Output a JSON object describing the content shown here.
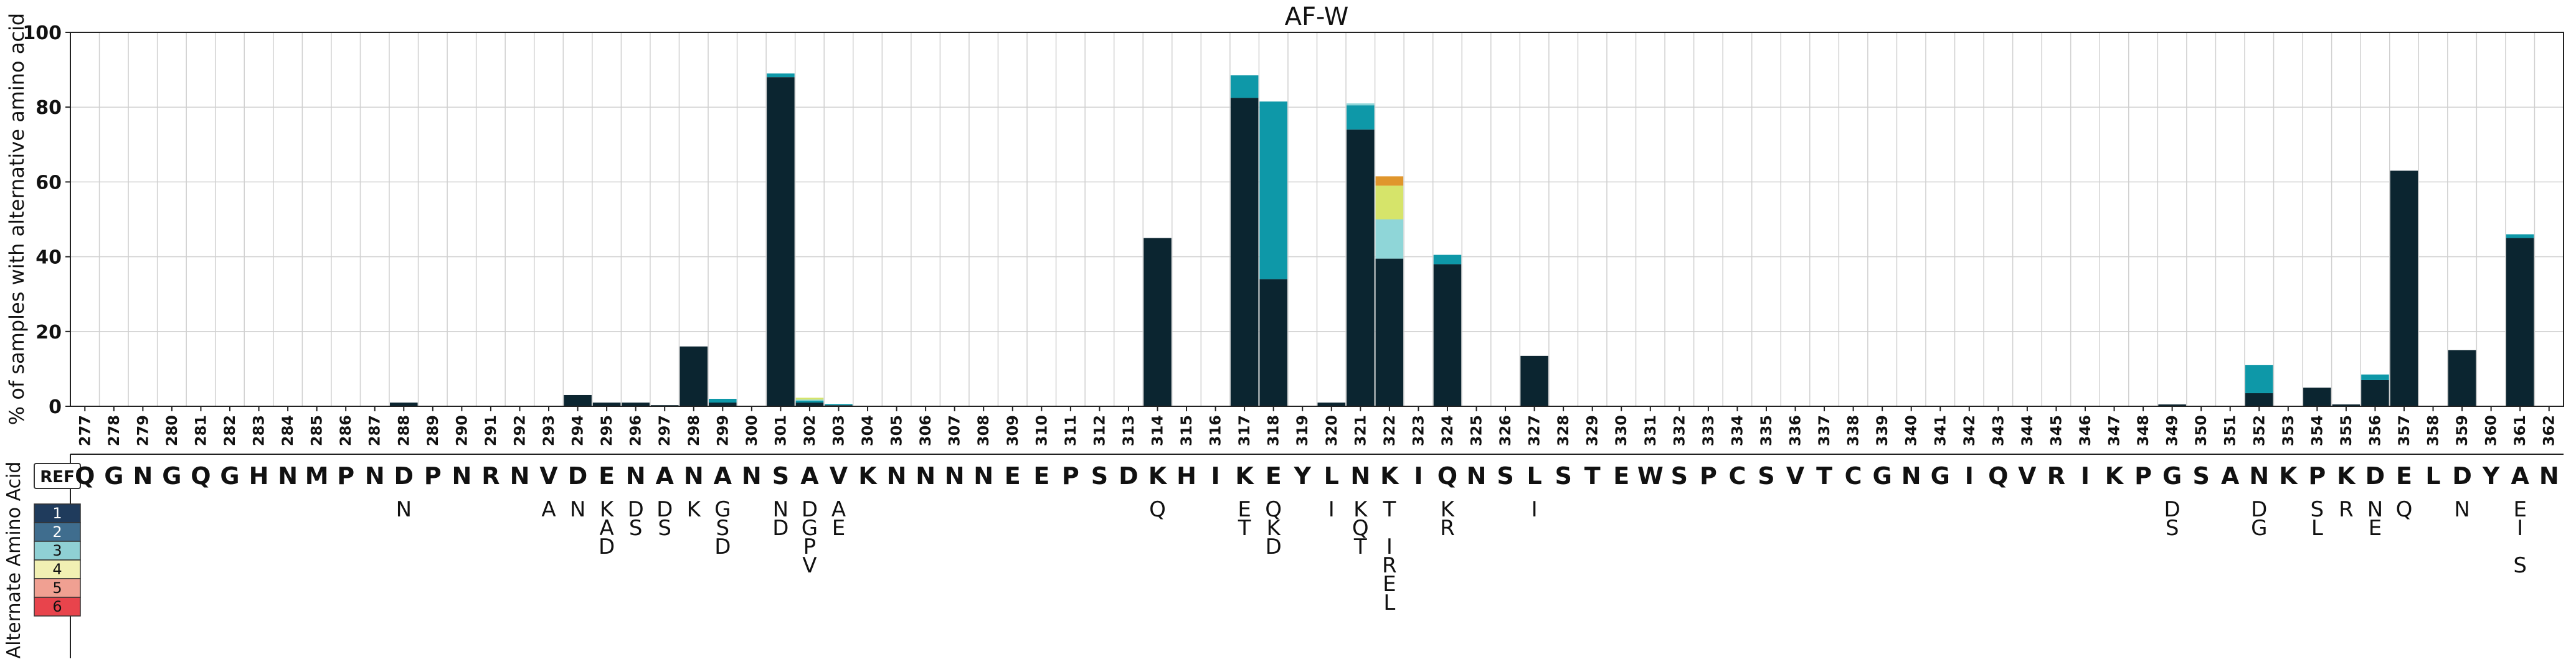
{
  "chart_data": {
    "type": "bar",
    "title": "AF-W",
    "ylabel": "% of samples with alternative amino acid",
    "ylim": [
      0,
      100
    ],
    "yticks": [
      0,
      20,
      40,
      60,
      80,
      100
    ],
    "grid": true,
    "stacked": true,
    "positions": [
      "277",
      "278",
      "279",
      "280",
      "281",
      "282",
      "283",
      "284",
      "285",
      "286",
      "287",
      "288",
      "289",
      "290",
      "291",
      "292",
      "293",
      "294",
      "295",
      "296",
      "297",
      "298",
      "299",
      "300",
      "301",
      "302",
      "303",
      "304",
      "305",
      "306",
      "307",
      "308",
      "309",
      "310",
      "311",
      "312",
      "313",
      "314",
      "315",
      "316",
      "317",
      "318",
      "319",
      "320",
      "321",
      "322",
      "323",
      "324",
      "325",
      "326",
      "327",
      "328",
      "329",
      "330",
      "331",
      "332",
      "333",
      "334",
      "335",
      "336",
      "337",
      "338",
      "339",
      "340",
      "341",
      "342",
      "343",
      "344",
      "345",
      "346",
      "347",
      "348",
      "349",
      "350",
      "351",
      "352",
      "353",
      "354",
      "355",
      "356",
      "357",
      "358",
      "359",
      "360",
      "361",
      "362"
    ],
    "ref_label": "REF",
    "reference": [
      "Q",
      "G",
      "N",
      "G",
      "Q",
      "G",
      "H",
      "N",
      "M",
      "P",
      "N",
      "D",
      "P",
      "N",
      "R",
      "N",
      "V",
      "D",
      "E",
      "N",
      "A",
      "N",
      "A",
      "N",
      "S",
      "A",
      "V",
      "K",
      "N",
      "N",
      "N",
      "N",
      "E",
      "E",
      "P",
      "S",
      "D",
      "K",
      "H",
      "I",
      "K",
      "E",
      "Y",
      "L",
      "N",
      "K",
      "I",
      "Q",
      "N",
      "S",
      "L",
      "S",
      "T",
      "E",
      "W",
      "S",
      "P",
      "C",
      "S",
      "V",
      "T",
      "C",
      "G",
      "N",
      "G",
      "I",
      "Q",
      "V",
      "R",
      "I",
      "K",
      "P",
      "G",
      "S",
      "A",
      "N",
      "K",
      "P",
      "K",
      "D",
      "E",
      "L",
      "D",
      "Y",
      "A",
      "N"
    ],
    "legend_title": "Alternate Amino Acid",
    "legend_labels": [
      "1",
      "2",
      "3",
      "4",
      "5",
      "6"
    ],
    "colors": [
      "#0b2530",
      "#0e98a8",
      "#8fd6d8",
      "#d6e46a",
      "#e0962c",
      "#a83d33"
    ],
    "legend_colors": [
      "#1f3b5c",
      "#3f6d8e",
      "#8fd0d4",
      "#f1f0b3",
      "#f0a092",
      "#e8444c"
    ],
    "alternates": [
      {
        "pos": "288",
        "aa": [
          "N"
        ]
      },
      {
        "pos": "293",
        "aa": [
          "A"
        ]
      },
      {
        "pos": "294",
        "aa": [
          "N"
        ]
      },
      {
        "pos": "295",
        "aa": [
          "K",
          "A",
          "D"
        ]
      },
      {
        "pos": "296",
        "aa": [
          "D",
          "S"
        ]
      },
      {
        "pos": "297",
        "aa": [
          "D",
          "S"
        ]
      },
      {
        "pos": "298",
        "aa": [
          "K"
        ]
      },
      {
        "pos": "299",
        "aa": [
          "G",
          "S",
          "D"
        ]
      },
      {
        "pos": "301",
        "aa": [
          "N",
          "D"
        ]
      },
      {
        "pos": "302",
        "aa": [
          "D",
          "G",
          "P",
          "V"
        ]
      },
      {
        "pos": "303",
        "aa": [
          "A",
          "E"
        ]
      },
      {
        "pos": "314",
        "aa": [
          "Q"
        ]
      },
      {
        "pos": "317",
        "aa": [
          "E",
          "T"
        ]
      },
      {
        "pos": "318",
        "aa": [
          "Q",
          "K",
          "D"
        ]
      },
      {
        "pos": "320",
        "aa": [
          "I"
        ]
      },
      {
        "pos": "321",
        "aa": [
          "K",
          "Q",
          "T"
        ]
      },
      {
        "pos": "322",
        "aa": [
          "T",
          "",
          "I",
          "R",
          "E",
          "L"
        ]
      },
      {
        "pos": "324",
        "aa": [
          "K",
          "R"
        ]
      },
      {
        "pos": "327",
        "aa": [
          "I"
        ]
      },
      {
        "pos": "349",
        "aa": [
          "D",
          "S"
        ]
      },
      {
        "pos": "352",
        "aa": [
          "D",
          "G"
        ]
      },
      {
        "pos": "354",
        "aa": [
          "S",
          "L"
        ]
      },
      {
        "pos": "355",
        "aa": [
          "R"
        ]
      },
      {
        "pos": "356",
        "aa": [
          "N",
          "E"
        ]
      },
      {
        "pos": "357",
        "aa": [
          "Q"
        ]
      },
      {
        "pos": "359",
        "aa": [
          "N"
        ]
      },
      {
        "pos": "361",
        "aa": [
          "E",
          "I",
          "",
          "S"
        ]
      }
    ],
    "bars": [
      {
        "pos": "288",
        "values": [
          1
        ]
      },
      {
        "pos": "294",
        "values": [
          3
        ]
      },
      {
        "pos": "295",
        "values": [
          1
        ]
      },
      {
        "pos": "296",
        "values": [
          1
        ]
      },
      {
        "pos": "297",
        "values": [
          0.3
        ]
      },
      {
        "pos": "298",
        "values": [
          16
        ]
      },
      {
        "pos": "299",
        "values": [
          1,
          1
        ]
      },
      {
        "pos": "301",
        "values": [
          88,
          1
        ]
      },
      {
        "pos": "302",
        "values": [
          1,
          0.5,
          0.3,
          0.5
        ]
      },
      {
        "pos": "303",
        "values": [
          0.3,
          0.3
        ]
      },
      {
        "pos": "314",
        "values": [
          45
        ]
      },
      {
        "pos": "317",
        "values": [
          82.5,
          6
        ]
      },
      {
        "pos": "318",
        "values": [
          34,
          47.5
        ]
      },
      {
        "pos": "320",
        "values": [
          1
        ]
      },
      {
        "pos": "321",
        "values": [
          74,
          6.5,
          0.5
        ]
      },
      {
        "pos": "322",
        "values": [
          39.5,
          0,
          10.5,
          9,
          2.5
        ]
      },
      {
        "pos": "324",
        "values": [
          38,
          2.5
        ]
      },
      {
        "pos": "327",
        "values": [
          13.5
        ]
      },
      {
        "pos": "349",
        "values": [
          0.5
        ]
      },
      {
        "pos": "352",
        "values": [
          3.5,
          7.5
        ]
      },
      {
        "pos": "354",
        "values": [
          5
        ]
      },
      {
        "pos": "355",
        "values": [
          0.5
        ]
      },
      {
        "pos": "356",
        "values": [
          7,
          1.5
        ]
      },
      {
        "pos": "357",
        "values": [
          63
        ]
      },
      {
        "pos": "359",
        "values": [
          15
        ]
      },
      {
        "pos": "361",
        "values": [
          45,
          1
        ]
      }
    ]
  }
}
